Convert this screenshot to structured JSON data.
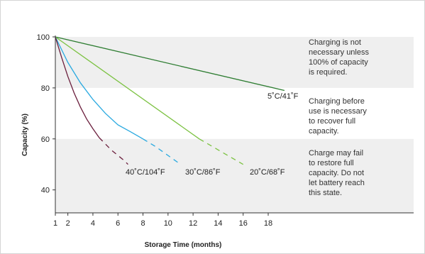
{
  "chart_data": {
    "type": "line",
    "title": "",
    "xlabel": "Storage Time (months)",
    "ylabel": "Capacity (%)",
    "xlim": [
      1,
      20
    ],
    "ylim": [
      31,
      100
    ],
    "xticks": [
      1,
      2,
      4,
      6,
      8,
      10,
      12,
      14,
      16,
      18
    ],
    "yticks": [
      40,
      60,
      80,
      100
    ],
    "series": [
      {
        "name": "5˚C/41˚F",
        "color": "#2e7d32",
        "points": [
          [
            1,
            100
          ],
          [
            19.3,
            79
          ]
        ],
        "dashed_from": null
      },
      {
        "name": "20˚C/68˚F",
        "color": "#7cc242",
        "points": [
          [
            1,
            100
          ],
          [
            12.5,
            60
          ],
          [
            16,
            50
          ]
        ],
        "dashed_from": 12.5
      },
      {
        "name": "30˚C/86˚F",
        "color": "#29a9e0",
        "points": [
          [
            1,
            100
          ],
          [
            2,
            90
          ],
          [
            3,
            82
          ],
          [
            4,
            75.5
          ],
          [
            5,
            70
          ],
          [
            6,
            65.5
          ],
          [
            7,
            62.8
          ],
          [
            8,
            60
          ],
          [
            9,
            57
          ],
          [
            10,
            53.5
          ],
          [
            11,
            50
          ]
        ],
        "dashed_from": 8
      },
      {
        "name": "40˚C/104˚F",
        "color": "#6b1f3d",
        "points": [
          [
            1,
            100
          ],
          [
            1.5,
            92
          ],
          [
            2,
            84.5
          ],
          [
            2.5,
            78
          ],
          [
            3,
            72.5
          ],
          [
            3.5,
            67.8
          ],
          [
            4,
            64
          ],
          [
            4.5,
            60.5
          ],
          [
            5,
            58
          ],
          [
            5.5,
            55.5
          ],
          [
            6,
            53.5
          ],
          [
            6.5,
            51.5
          ],
          [
            6.8,
            50
          ]
        ],
        "dashed_from": 4.5
      }
    ],
    "zones": [
      {
        "from": 80,
        "to": 100,
        "shaded": true,
        "text": [
          "Charging is not",
          "necessary unless",
          "100% of capacity",
          "is required."
        ]
      },
      {
        "from": 60,
        "to": 80,
        "shaded": false,
        "text": [
          "Charging before",
          "use is necessary",
          "to recover full",
          "capacity."
        ]
      },
      {
        "from": 31,
        "to": 60,
        "shaded": true,
        "text": [
          "Charge may fail",
          "to restore full",
          "capacity. Do not",
          "let battery reach",
          "this state."
        ]
      }
    ],
    "colors": {
      "shade": "#efefef",
      "axis": "#333333"
    },
    "grid": false,
    "legend": "inline labels at line ends"
  }
}
